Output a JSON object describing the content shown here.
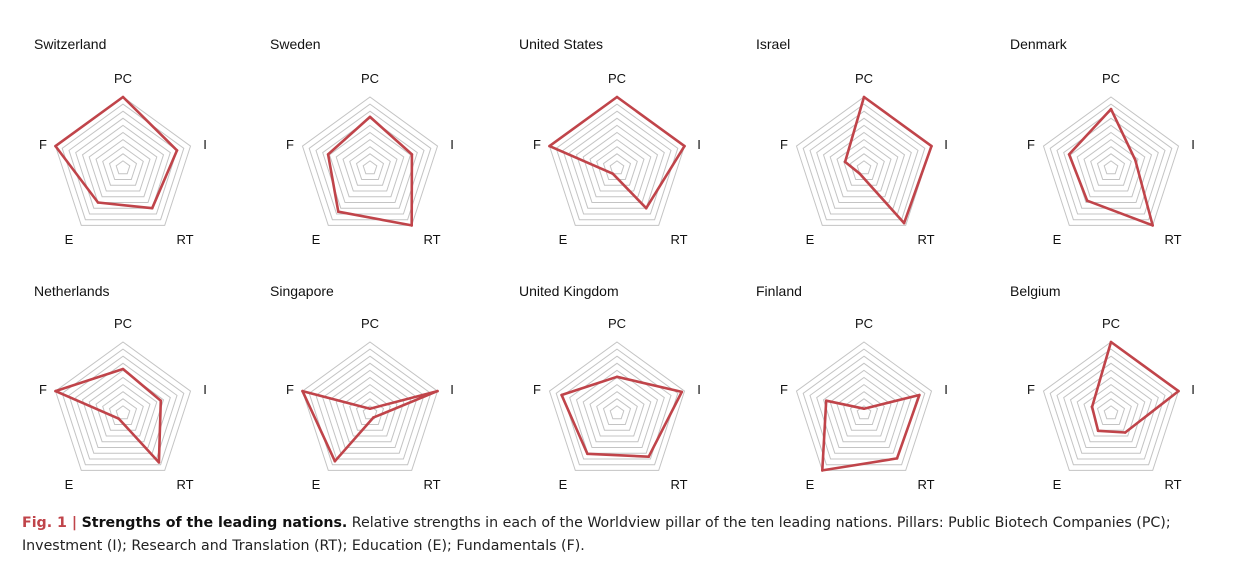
{
  "chart_data": [
    {
      "type": "radar",
      "title": "Switzerland",
      "axes": [
        "PC",
        "I",
        "RT",
        "E",
        "F"
      ],
      "values": [
        10,
        8,
        7,
        6,
        10
      ]
    },
    {
      "type": "radar",
      "title": "Sweden",
      "axes": [
        "PC",
        "I",
        "RT",
        "E",
        "F"
      ],
      "values": [
        7.2,
        6.2,
        10,
        7.6,
        6.2
      ]
    },
    {
      "type": "radar",
      "title": "United States",
      "axes": [
        "PC",
        "I",
        "RT",
        "E",
        "F"
      ],
      "values": [
        10,
        10,
        7,
        1,
        10
      ]
    },
    {
      "type": "radar",
      "title": "Israel",
      "axes": [
        "PC",
        "I",
        "RT",
        "E",
        "F"
      ],
      "values": [
        10,
        10,
        9.6,
        1,
        2.8
      ]
    },
    {
      "type": "radar",
      "title": "Denmark",
      "axes": [
        "PC",
        "I",
        "RT",
        "E",
        "F"
      ],
      "values": [
        8.3,
        3.6,
        10,
        5.7,
        6.2
      ]
    },
    {
      "type": "radar",
      "title": "Netherlands",
      "axes": [
        "PC",
        "I",
        "RT",
        "E",
        "F"
      ],
      "values": [
        6.2,
        5.6,
        8.6,
        1,
        10
      ]
    },
    {
      "type": "radar",
      "title": "Singapore",
      "axes": [
        "PC",
        "I",
        "RT",
        "E",
        "F"
      ],
      "values": [
        0.6,
        10,
        0.8,
        8.4,
        10
      ]
    },
    {
      "type": "radar",
      "title": "United Kingdom",
      "axes": [
        "PC",
        "I",
        "RT",
        "E",
        "F"
      ],
      "values": [
        5.1,
        9.6,
        7.6,
        7.1,
        8.2
      ]
    },
    {
      "type": "radar",
      "title": "Finland",
      "axes": [
        "PC",
        "I",
        "RT",
        "E",
        "F"
      ],
      "values": [
        0.6,
        8.2,
        7.9,
        10,
        5.6
      ]
    },
    {
      "type": "radar",
      "title": "Belgium",
      "axes": [
        "PC",
        "I",
        "RT",
        "E",
        "F"
      ],
      "values": [
        10,
        10,
        3.4,
        3.1,
        2.8
      ]
    }
  ],
  "chart_meta": {
    "grid": true,
    "rings": 10,
    "max": 10
  },
  "caption": {
    "label": "Fig. 1 |",
    "title": "Strengths of the leading nations.",
    "text": "Relative strengths in each of the Worldview pillar of the ten leading nations. Pillars: Public Biotech Companies (PC); Investment (I); Research and Translation (RT); Education (E); Fundamentals (F)."
  },
  "colors": {
    "series": "#c0444a",
    "grid": "#c4c4c4",
    "caption_label": "#c0444a"
  }
}
